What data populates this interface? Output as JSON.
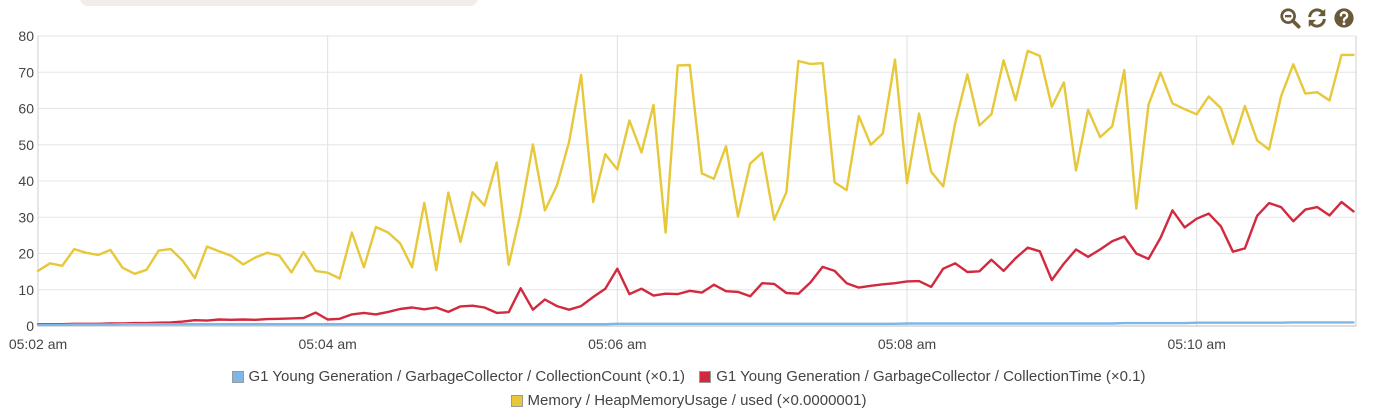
{
  "toolbar": {
    "zoom_out_icon": "zoom-out-icon",
    "refresh_icon": "refresh-icon",
    "help_icon": "help-icon",
    "icon_color": "#6b5a3a"
  },
  "chart_data": {
    "type": "line",
    "xlabel": "",
    "ylabel": "",
    "ylim": [
      0,
      80
    ],
    "yticks": [
      "0",
      "10",
      "20",
      "30",
      "40",
      "50",
      "60",
      "70",
      "80"
    ],
    "xticks": [
      "05:02 am",
      "05:04 am",
      "05:06 am",
      "05:08 am",
      "05:10 am"
    ],
    "xlim": [
      0,
      9.1
    ],
    "grid": true,
    "legend_position": "bottom",
    "x": [
      0,
      0.083,
      0.167,
      0.25,
      0.333,
      0.417,
      0.5,
      0.583,
      0.667,
      0.75,
      0.833,
      0.917,
      1,
      1.083,
      1.167,
      1.25,
      1.333,
      1.417,
      1.5,
      1.583,
      1.667,
      1.75,
      1.833,
      1.917,
      2,
      2.083,
      2.167,
      2.25,
      2.333,
      2.417,
      2.5,
      2.583,
      2.667,
      2.75,
      2.833,
      2.917,
      3,
      3.083,
      3.167,
      3.25,
      3.333,
      3.417,
      3.5,
      3.583,
      3.667,
      3.75,
      3.833,
      3.917,
      4,
      4.083,
      4.167,
      4.25,
      4.333,
      4.417,
      4.5,
      4.583,
      4.667,
      4.75,
      4.833,
      4.917,
      5,
      5.083,
      5.167,
      5.25,
      5.333,
      5.417,
      5.5,
      5.583,
      5.667,
      5.75,
      5.833,
      5.917,
      6,
      6.083,
      6.167,
      6.25,
      6.333,
      6.417,
      6.5,
      6.583,
      6.667,
      6.75,
      6.833,
      6.917,
      7,
      7.083,
      7.167,
      7.25,
      7.333,
      7.417,
      7.5,
      7.583,
      7.667,
      7.75,
      7.833,
      7.917,
      8,
      8.083,
      8.167,
      8.25,
      8.333,
      8.417,
      8.5,
      8.583,
      8.667,
      8.75,
      8.833,
      8.917,
      9,
      9.083
    ],
    "series": [
      {
        "name": "G1 Young Generation / GarbageCollector / CollectionCount (×0.1)",
        "color": "#7eb6e6",
        "values": [
          0.3,
          0.3,
          0.3,
          0.4,
          0.4,
          0.4,
          0.4,
          0.5,
          0.5,
          0.5,
          0.5,
          0.5,
          0.5,
          0.5,
          0.5,
          0.5,
          0.5,
          0.5,
          0.5,
          0.5,
          0.5,
          0.5,
          0.5,
          0.5,
          0.5,
          0.5,
          0.5,
          0.5,
          0.5,
          0.5,
          0.5,
          0.5,
          0.5,
          0.5,
          0.5,
          0.5,
          0.5,
          0.5,
          0.5,
          0.5,
          0.5,
          0.5,
          0.5,
          0.5,
          0.5,
          0.5,
          0.5,
          0.5,
          0.6,
          0.6,
          0.6,
          0.6,
          0.6,
          0.6,
          0.6,
          0.6,
          0.6,
          0.6,
          0.6,
          0.6,
          0.6,
          0.6,
          0.6,
          0.6,
          0.6,
          0.6,
          0.6,
          0.6,
          0.6,
          0.6,
          0.6,
          0.6,
          0.7,
          0.7,
          0.7,
          0.7,
          0.7,
          0.7,
          0.7,
          0.7,
          0.7,
          0.7,
          0.7,
          0.7,
          0.7,
          0.7,
          0.7,
          0.7,
          0.7,
          0.7,
          0.8,
          0.8,
          0.8,
          0.8,
          0.8,
          0.8,
          0.9,
          0.9,
          0.9,
          0.9,
          0.9,
          0.9,
          0.9,
          0.9,
          1.0,
          1.0,
          1.0,
          1.0,
          1.0,
          1.0
        ]
      },
      {
        "name": "G1 Young Generation / GarbageCollector / CollectionTime (×0.1)",
        "color": "#d2293f",
        "values": [
          0.5,
          0.5,
          0.5,
          0.6,
          0.6,
          0.6,
          0.7,
          0.7,
          0.8,
          0.8,
          0.9,
          1.0,
          1.2,
          1.6,
          1.5,
          1.8,
          1.7,
          1.8,
          1.7,
          1.9,
          2.0,
          2.1,
          2.2,
          3.7,
          1.8,
          2.0,
          3.2,
          3.6,
          3.2,
          3.9,
          4.7,
          5.1,
          4.6,
          5.1,
          3.9,
          5.4,
          5.6,
          5.1,
          3.6,
          3.8,
          10.4,
          4.5,
          7.3,
          5.5,
          4.5,
          5.5,
          8.0,
          10.3,
          15.8,
          8.8,
          10.3,
          8.4,
          8.9,
          8.8,
          9.7,
          9.2,
          11.4,
          9.6,
          9.4,
          8.2,
          11.8,
          11.6,
          9.1,
          8.9,
          12.0,
          16.3,
          15.2,
          11.8,
          10.6,
          11.1,
          11.5,
          11.8,
          12.3,
          12.4,
          10.8,
          15.8,
          17.3,
          14.9,
          15.1,
          18.3,
          15.2,
          18.7,
          21.6,
          20.6,
          12.7,
          17.2,
          21.1,
          19.1,
          21.1,
          23.4,
          24.7,
          20.0,
          18.5,
          24.3,
          31.9,
          27.2,
          29.6,
          31.0,
          27.5,
          20.5,
          21.4,
          30.4,
          33.9,
          32.8,
          28.9,
          32.1,
          32.8,
          30.5,
          34.2,
          31.6
        ]
      },
      {
        "name": "Memory / HeapMemoryUsage / used (×0.0000001)",
        "color": "#e6c83a",
        "values": [
          15.2,
          17.3,
          16.6,
          21.2,
          20.2,
          19.6,
          21.0,
          16.1,
          14.4,
          15.5,
          20.8,
          21.2,
          18.0,
          13.2,
          21.9,
          20.6,
          19.4,
          17.0,
          18.9,
          20.2,
          19.4,
          14.8,
          20.4,
          15.2,
          14.7,
          13.1,
          25.8,
          16.2,
          27.3,
          25.8,
          22.8,
          16.2,
          34.0,
          15.4,
          36.8,
          23.2,
          36.9,
          33.2,
          45.1,
          16.9,
          31.3,
          50.1,
          31.9,
          38.7,
          50.8,
          69.3,
          34.2,
          47.4,
          43.2,
          56.7,
          47.9,
          61.0,
          25.8,
          71.9,
          72.0,
          42.1,
          40.6,
          49.6,
          30.2,
          44.8,
          47.8,
          29.3,
          36.9,
          73.1,
          72.3,
          72.5,
          39.6,
          37.5,
          57.9,
          50.0,
          53.1,
          73.5,
          39.4,
          58.6,
          42.5,
          38.5,
          56.0,
          69.4,
          55.3,
          58.4,
          73.3,
          62.3,
          75.9,
          74.5,
          60.5,
          67.2,
          42.9,
          59.6,
          52.1,
          55.1,
          70.6,
          32.4,
          61.0,
          69.9,
          61.4,
          59.8,
          58.4,
          63.3,
          60.1,
          50.2,
          60.7,
          51.2,
          48.7,
          63.4,
          72.2,
          64.1,
          64.5,
          62.2,
          74.8,
          74.8
        ]
      }
    ]
  }
}
